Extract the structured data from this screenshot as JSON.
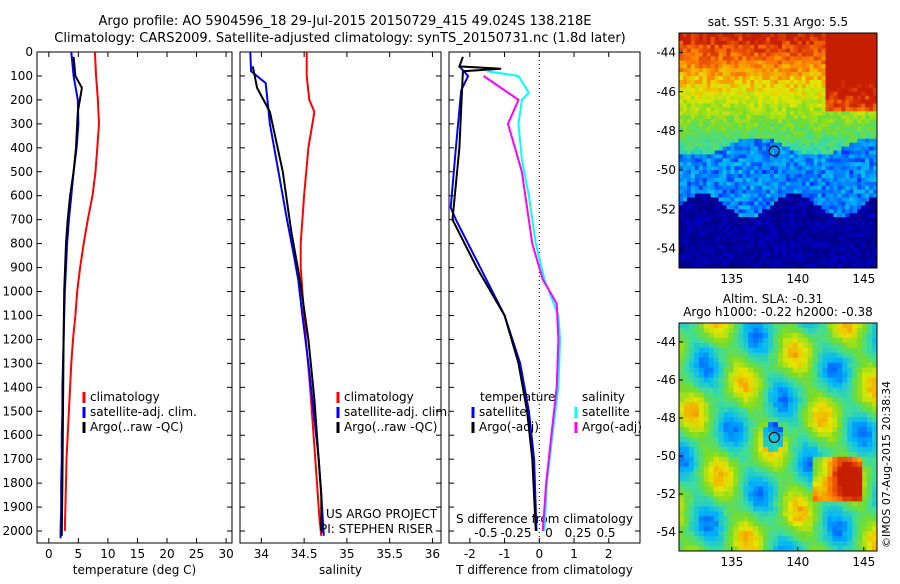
{
  "header": {
    "line1": "Argo profile: AO 5904596_18 29-Jul-2015 20150729_415 49.024S 138.218E",
    "line2": "Climatology: CARS2009. Satellite-adjusted climatology: synTS_20150731.nc (1.8d later)"
  },
  "colors": {
    "climatology": "#ff0000",
    "satellite": "#0000ff",
    "argo": "#000000",
    "salinity_sat": "#00ffff",
    "salinity_argo": "#ff00ff"
  },
  "chart_data": [
    {
      "type": "line",
      "id": "temperature",
      "xlabel": "temperature (deg C)",
      "ylabel": "",
      "xlim": [
        -2,
        31
      ],
      "ylim": [
        0,
        2050
      ],
      "y_reversed": true,
      "xticks": [
        0,
        5,
        10,
        15,
        20,
        25,
        30
      ],
      "yticks": [
        0,
        100,
        200,
        300,
        400,
        500,
        600,
        700,
        800,
        900,
        1000,
        1100,
        1200,
        1300,
        1400,
        1500,
        1600,
        1700,
        1800,
        1900,
        2000
      ],
      "series": [
        {
          "name": "climatology",
          "color": "#ff0000",
          "points": [
            [
              7.8,
              0
            ],
            [
              8.0,
              100
            ],
            [
              8.3,
              200
            ],
            [
              8.5,
              300
            ],
            [
              8.2,
              400
            ],
            [
              7.9,
              500
            ],
            [
              7.4,
              600
            ],
            [
              6.6,
              700
            ],
            [
              5.9,
              800
            ],
            [
              5.3,
              900
            ],
            [
              4.8,
              1000
            ],
            [
              4.5,
              1100
            ],
            [
              4.1,
              1200
            ],
            [
              3.8,
              1300
            ],
            [
              3.6,
              1400
            ],
            [
              3.4,
              1500
            ],
            [
              3.2,
              1600
            ],
            [
              3.0,
              1700
            ],
            [
              2.9,
              1800
            ],
            [
              2.8,
              1900
            ],
            [
              2.7,
              2000
            ]
          ]
        },
        {
          "name": "satellite-adj. clim.",
          "color": "#0000ff",
          "points": [
            [
              3.8,
              0
            ],
            [
              4.2,
              100
            ],
            [
              4.9,
              200
            ],
            [
              5.0,
              300
            ],
            [
              4.7,
              400
            ],
            [
              4.2,
              500
            ],
            [
              3.8,
              600
            ],
            [
              3.4,
              700
            ],
            [
              3.1,
              800
            ],
            [
              2.9,
              900
            ],
            [
              2.7,
              1000
            ],
            [
              2.6,
              1100
            ],
            [
              2.5,
              1200
            ],
            [
              2.4,
              1300
            ],
            [
              2.3,
              1400
            ],
            [
              2.3,
              1500
            ],
            [
              2.2,
              1600
            ],
            [
              2.2,
              1700
            ],
            [
              2.1,
              1800
            ],
            [
              2.1,
              1900
            ],
            [
              2.0,
              2000
            ],
            [
              2.0,
              2030
            ]
          ]
        },
        {
          "name": "Argo(..raw -QC)",
          "color": "#000000",
          "points": [
            [
              4.2,
              20
            ],
            [
              4.5,
              100
            ],
            [
              5.6,
              150
            ],
            [
              4.9,
              250
            ],
            [
              4.6,
              400
            ],
            [
              4.2,
              500
            ],
            [
              3.6,
              600
            ],
            [
              3.2,
              700
            ],
            [
              2.9,
              800
            ],
            [
              2.6,
              1000
            ],
            [
              2.5,
              1200
            ],
            [
              2.4,
              1500
            ],
            [
              2.3,
              1800
            ],
            [
              2.2,
              2000
            ],
            [
              2.2,
              2020
            ]
          ]
        }
      ]
    },
    {
      "type": "line",
      "id": "salinity",
      "xlabel": "salinity",
      "ylabel": "",
      "xlim": [
        33.75,
        36.1
      ],
      "ylim": [
        0,
        2050
      ],
      "y_reversed": true,
      "xticks": [
        34,
        34.5,
        35,
        35.5,
        36
      ],
      "series": [
        {
          "name": "climatology",
          "color": "#ff0000",
          "points": [
            [
              34.53,
              0
            ],
            [
              34.53,
              100
            ],
            [
              34.56,
              200
            ],
            [
              34.62,
              250
            ],
            [
              34.55,
              400
            ],
            [
              34.5,
              600
            ],
            [
              34.46,
              800
            ],
            [
              34.46,
              900
            ],
            [
              34.48,
              1000
            ],
            [
              34.52,
              1200
            ],
            [
              34.57,
              1400
            ],
            [
              34.61,
              1600
            ],
            [
              34.65,
              1800
            ],
            [
              34.68,
              1950
            ],
            [
              34.7,
              2020
            ]
          ]
        },
        {
          "name": "satellite-adj. clim.",
          "color": "#0000ff",
          "points": [
            [
              33.87,
              0
            ],
            [
              33.88,
              80
            ],
            [
              34.05,
              130
            ],
            [
              34.1,
              300
            ],
            [
              34.2,
              500
            ],
            [
              34.3,
              700
            ],
            [
              34.38,
              850
            ],
            [
              34.43,
              950
            ],
            [
              34.48,
              1100
            ],
            [
              34.55,
              1300
            ],
            [
              34.61,
              1500
            ],
            [
              34.67,
              1700
            ],
            [
              34.7,
              1850
            ],
            [
              34.73,
              2020
            ]
          ]
        },
        {
          "name": "Argo(..raw -QC)",
          "color": "#000000",
          "points": [
            [
              33.9,
              60
            ],
            [
              33.95,
              150
            ],
            [
              34.1,
              250
            ],
            [
              34.25,
              500
            ],
            [
              34.35,
              750
            ],
            [
              34.45,
              950
            ],
            [
              34.55,
              1200
            ],
            [
              34.62,
              1450
            ],
            [
              34.66,
              1650
            ],
            [
              34.7,
              1850
            ],
            [
              34.7,
              2000
            ]
          ]
        }
      ],
      "annotations": [
        "US ARGO PROJECT",
        "PI: STEPHEN RISER"
      ]
    },
    {
      "type": "line",
      "id": "difference",
      "xlabel": "T difference from climatology",
      "xlabel_top": "S difference from climatology",
      "xlim": [
        -2.6,
        2.9
      ],
      "ylim": [
        0,
        2050
      ],
      "y_reversed": true,
      "xticks": [
        -2,
        -1,
        0,
        1,
        2
      ],
      "xticks_top": [
        -0.5,
        -0.25,
        0,
        0.25,
        0.5
      ],
      "legend_titles": [
        "temperature",
        "salinity"
      ],
      "series": [
        {
          "name": "satellite",
          "color": "#0000ff",
          "points": [
            [
              -2.3,
              60
            ],
            [
              -2.05,
              100
            ],
            [
              -2.25,
              160
            ],
            [
              -2.4,
              400
            ],
            [
              -2.55,
              650
            ],
            [
              -2.4,
              700
            ],
            [
              -1.7,
              900
            ],
            [
              -1.0,
              1100
            ],
            [
              -0.55,
              1300
            ],
            [
              -0.3,
              1500
            ],
            [
              -0.15,
              1700
            ],
            [
              -0.08,
              2000
            ]
          ]
        },
        {
          "name": "Argo(-adj)",
          "color": "#000000",
          "points": [
            [
              -2.2,
              20
            ],
            [
              -2.3,
              60
            ],
            [
              -1.1,
              70
            ],
            [
              -2.2,
              80
            ],
            [
              -2.3,
              400
            ],
            [
              -2.5,
              700
            ],
            [
              -1.8,
              900
            ],
            [
              -1.0,
              1100
            ],
            [
              -0.6,
              1300
            ],
            [
              -0.35,
              1500
            ],
            [
              -0.2,
              1700
            ],
            [
              -0.1,
              2000
            ]
          ]
        },
        {
          "name": "satellite",
          "color": "#00ffff",
          "points": [
            [
              -1.5,
              80
            ],
            [
              -0.6,
              100
            ],
            [
              -0.3,
              170
            ],
            [
              -0.5,
              200
            ],
            [
              -0.6,
              300
            ],
            [
              -0.5,
              450
            ],
            [
              -0.3,
              600
            ],
            [
              -0.1,
              800
            ],
            [
              0.15,
              950
            ],
            [
              0.55,
              1100
            ],
            [
              0.6,
              1200
            ],
            [
              0.55,
              1400
            ],
            [
              0.38,
              1600
            ],
            [
              0.22,
              1800
            ],
            [
              0.15,
              2000
            ]
          ]
        },
        {
          "name": "Argo(-adj)",
          "color": "#ff00ff",
          "points": [
            [
              -1.6,
              100
            ],
            [
              -0.6,
              200
            ],
            [
              -0.9,
              300
            ],
            [
              -0.7,
              400
            ],
            [
              -0.5,
              500
            ],
            [
              -0.2,
              800
            ],
            [
              0.1,
              950
            ],
            [
              0.5,
              1050
            ],
            [
              0.55,
              1200
            ],
            [
              0.5,
              1400
            ],
            [
              0.35,
              1600
            ],
            [
              0.2,
              1800
            ],
            [
              0.1,
              2000
            ]
          ]
        }
      ]
    },
    {
      "type": "heatmap",
      "id": "sst-map",
      "title": "sat. SST: 5.31 Argo: 5.5",
      "xlim": [
        131,
        146
      ],
      "ylim": [
        -55,
        -43
      ],
      "xticks": [
        135,
        140,
        145
      ],
      "yticks": [
        -44,
        -46,
        -48,
        -50,
        -52,
        -54
      ],
      "marker": {
        "lon": 138.218,
        "lat": -49.024
      }
    },
    {
      "type": "heatmap",
      "id": "sla-map",
      "title": "Altim. SLA: -0.31",
      "subtitle": "Argo h1000: -0.22 h2000: -0.38",
      "xlim": [
        131,
        146
      ],
      "ylim": [
        -55,
        -43
      ],
      "xticks": [
        135,
        140,
        145
      ],
      "yticks": [
        -44,
        -46,
        -48,
        -50,
        -52,
        -54
      ],
      "marker": {
        "lon": 138.218,
        "lat": -49.024
      }
    }
  ],
  "legends": {
    "temperature": [
      "climatology",
      "satellite-adj. clim.",
      "Argo(..raw -QC)"
    ],
    "salinity": [
      "climatology",
      "satellite-adj. clim.",
      "Argo(..raw -QC)"
    ],
    "difference_t": [
      "temperature",
      "satellite",
      "Argo(-adj)"
    ],
    "difference_s": [
      "salinity",
      "satellite",
      "Argo(-adj)"
    ]
  },
  "side_label": "©IMOS 07-Aug-2015 20:38:34"
}
